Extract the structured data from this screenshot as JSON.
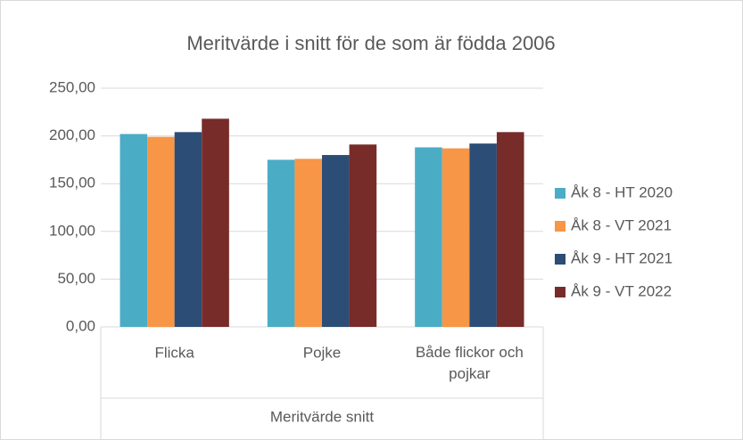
{
  "chart_data": {
    "type": "bar",
    "title": "Meritvärde i snitt för de som är födda 2006",
    "categories": [
      "Flicka",
      "Pojke",
      "Både flickor och pojkar"
    ],
    "group_label": "Meritvärde snitt",
    "series": [
      {
        "name": "Åk 8 - HT 2020",
        "color": "#4bacc6",
        "values": [
          202,
          175,
          188
        ]
      },
      {
        "name": "Åk 8 - VT 2021",
        "color": "#f79646",
        "values": [
          199,
          176,
          187
        ]
      },
      {
        "name": "Åk 9 - HT 2021",
        "color": "#2c4d75",
        "values": [
          204,
          180,
          192
        ]
      },
      {
        "name": "Åk 9 - VT 2022",
        "color": "#772c2a",
        "values": [
          218,
          191,
          204
        ]
      }
    ],
    "ylim": [
      0,
      250
    ],
    "yticks": [
      {
        "value": 0,
        "label": "0,00"
      },
      {
        "value": 50,
        "label": "50,00"
      },
      {
        "value": 100,
        "label": "100,00"
      },
      {
        "value": 150,
        "label": "150,00"
      },
      {
        "value": 200,
        "label": "200,00"
      },
      {
        "value": 250,
        "label": "250,00"
      }
    ],
    "grid": true,
    "legend": "right"
  }
}
